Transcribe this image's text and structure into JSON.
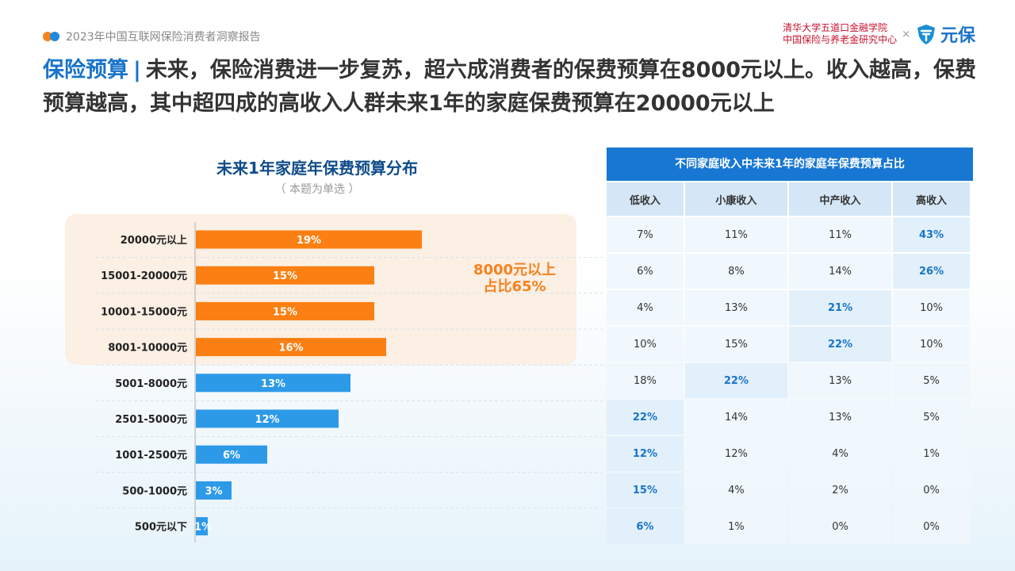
{
  "header": {
    "report_name": "2023年中国互联网保险消费者洞察报告",
    "partner_line1": "清华大学五道口金融学院",
    "partner_line2": "中国保险与养老金研究中心",
    "times": "×",
    "brand_name": "元保"
  },
  "headline": {
    "topic": "保险预算",
    "separator": "|",
    "text": "未来，保险消费进一步复苏，超六成消费者的保费预算在8000元以上。收入越高，保费预算越高，其中超四成的高收入人群未来1年的家庭保费预算在20000元以上"
  },
  "colors": {
    "orange": "#fb7f12",
    "blue": "#2d9ae8",
    "highlight_bg": "#fcefe4",
    "accent": "#1a74c8"
  },
  "chart_data": {
    "type": "bar",
    "orientation": "horizontal",
    "title": "未来1年家庭年保费预算分布",
    "subtitle": "（ 本题为单选 ）",
    "categories": [
      "20000元以上",
      "15001-20000元",
      "10001-15000元",
      "8001-10000元",
      "5001-8000元",
      "2501-5000元",
      "1001-2500元",
      "500-1000元",
      "500元以下"
    ],
    "values": [
      19,
      15,
      15,
      16,
      13,
      12,
      6,
      3,
      1
    ],
    "value_suffix": "%",
    "highlight_count": 4,
    "callout": {
      "line1": "8000元以上",
      "line2": "占比65%"
    },
    "xlim": [
      0,
      27
    ]
  },
  "table": {
    "title": "不同家庭收入中未来1年的家庭年保费预算占比",
    "columns": [
      "低收入",
      "小康收入",
      "中产收入",
      "高收入"
    ],
    "rows": [
      [
        "7%",
        "11%",
        "11%",
        "43%"
      ],
      [
        "6%",
        "8%",
        "14%",
        "26%"
      ],
      [
        "4%",
        "13%",
        "21%",
        "10%"
      ],
      [
        "10%",
        "15%",
        "22%",
        "10%"
      ],
      [
        "18%",
        "22%",
        "13%",
        "5%"
      ],
      [
        "22%",
        "14%",
        "13%",
        "5%"
      ],
      [
        "12%",
        "12%",
        "4%",
        "1%"
      ],
      [
        "15%",
        "4%",
        "2%",
        "0%"
      ],
      [
        "6%",
        "1%",
        "0%",
        "0%"
      ]
    ],
    "highlighted": [
      [
        0,
        3
      ],
      [
        1,
        3
      ],
      [
        2,
        2
      ],
      [
        3,
        2
      ],
      [
        4,
        1
      ],
      [
        5,
        0
      ],
      [
        6,
        0
      ],
      [
        7,
        0
      ],
      [
        8,
        0
      ]
    ]
  }
}
